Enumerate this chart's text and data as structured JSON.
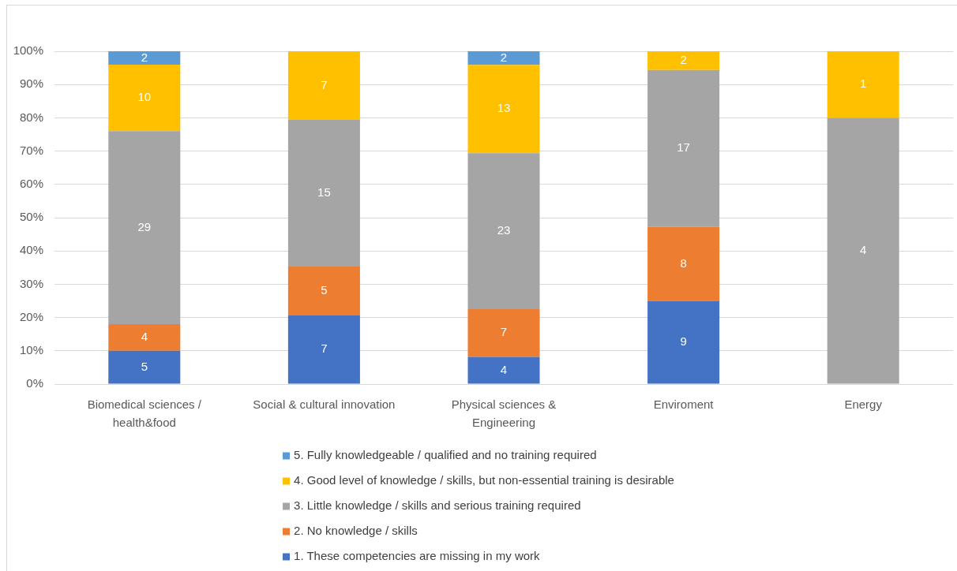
{
  "chart_data": {
    "type": "bar",
    "stacked": true,
    "grid": "y",
    "legend": "bottom",
    "categories": [
      "Biomedical sciences / health&food",
      "Social & cultural innovation",
      "Physical sciences & Engineering",
      "Enviroment",
      "Energy"
    ],
    "ylim": [
      0,
      100
    ],
    "yticks": [
      {
        "value": 0,
        "label": "0%"
      },
      {
        "value": 10,
        "label": "10%"
      },
      {
        "value": 20,
        "label": "20%"
      },
      {
        "value": 30,
        "label": "30%"
      },
      {
        "value": 40,
        "label": "40%"
      },
      {
        "value": 50,
        "label": "50%"
      },
      {
        "value": 60,
        "label": "60%"
      },
      {
        "value": 70,
        "label": "70%"
      },
      {
        "value": 80,
        "label": "80%"
      },
      {
        "value": 90,
        "label": "90%"
      },
      {
        "value": 100,
        "label": "100%"
      }
    ],
    "series": [
      {
        "name": "1. These competencies are missing in my work",
        "color": "#4472c4",
        "values": [
          10,
          20.6,
          8.2,
          25,
          null
        ]
      },
      {
        "name": "2. No knowledge / skills",
        "color": "#ed7d31",
        "values": [
          8,
          14.7,
          14.3,
          22.2,
          null
        ]
      },
      {
        "name": "3. Little knowledge / skills and serious training required",
        "color": "#a5a5a5",
        "values": [
          58,
          44.1,
          46.9,
          47.2,
          80
        ]
      },
      {
        "name": "4. Good level of knowledge / skills, but non-essential training is desirable",
        "color": "#ffc000",
        "values": [
          20,
          20.6,
          26.5,
          5.6,
          20
        ]
      },
      {
        "name": "5. Fully knowledgeable / qualified and no training required",
        "color": "#5b9bd5",
        "values": [
          4,
          null,
          4.1,
          null,
          null
        ]
      }
    ],
    "annotations": [
      "5",
      "4",
      "29",
      "10",
      "2",
      "7",
      "5",
      "15",
      "7",
      "4",
      "7",
      "23",
      "13",
      "2",
      "9",
      "8",
      "17",
      "2",
      "4",
      "1"
    ]
  }
}
